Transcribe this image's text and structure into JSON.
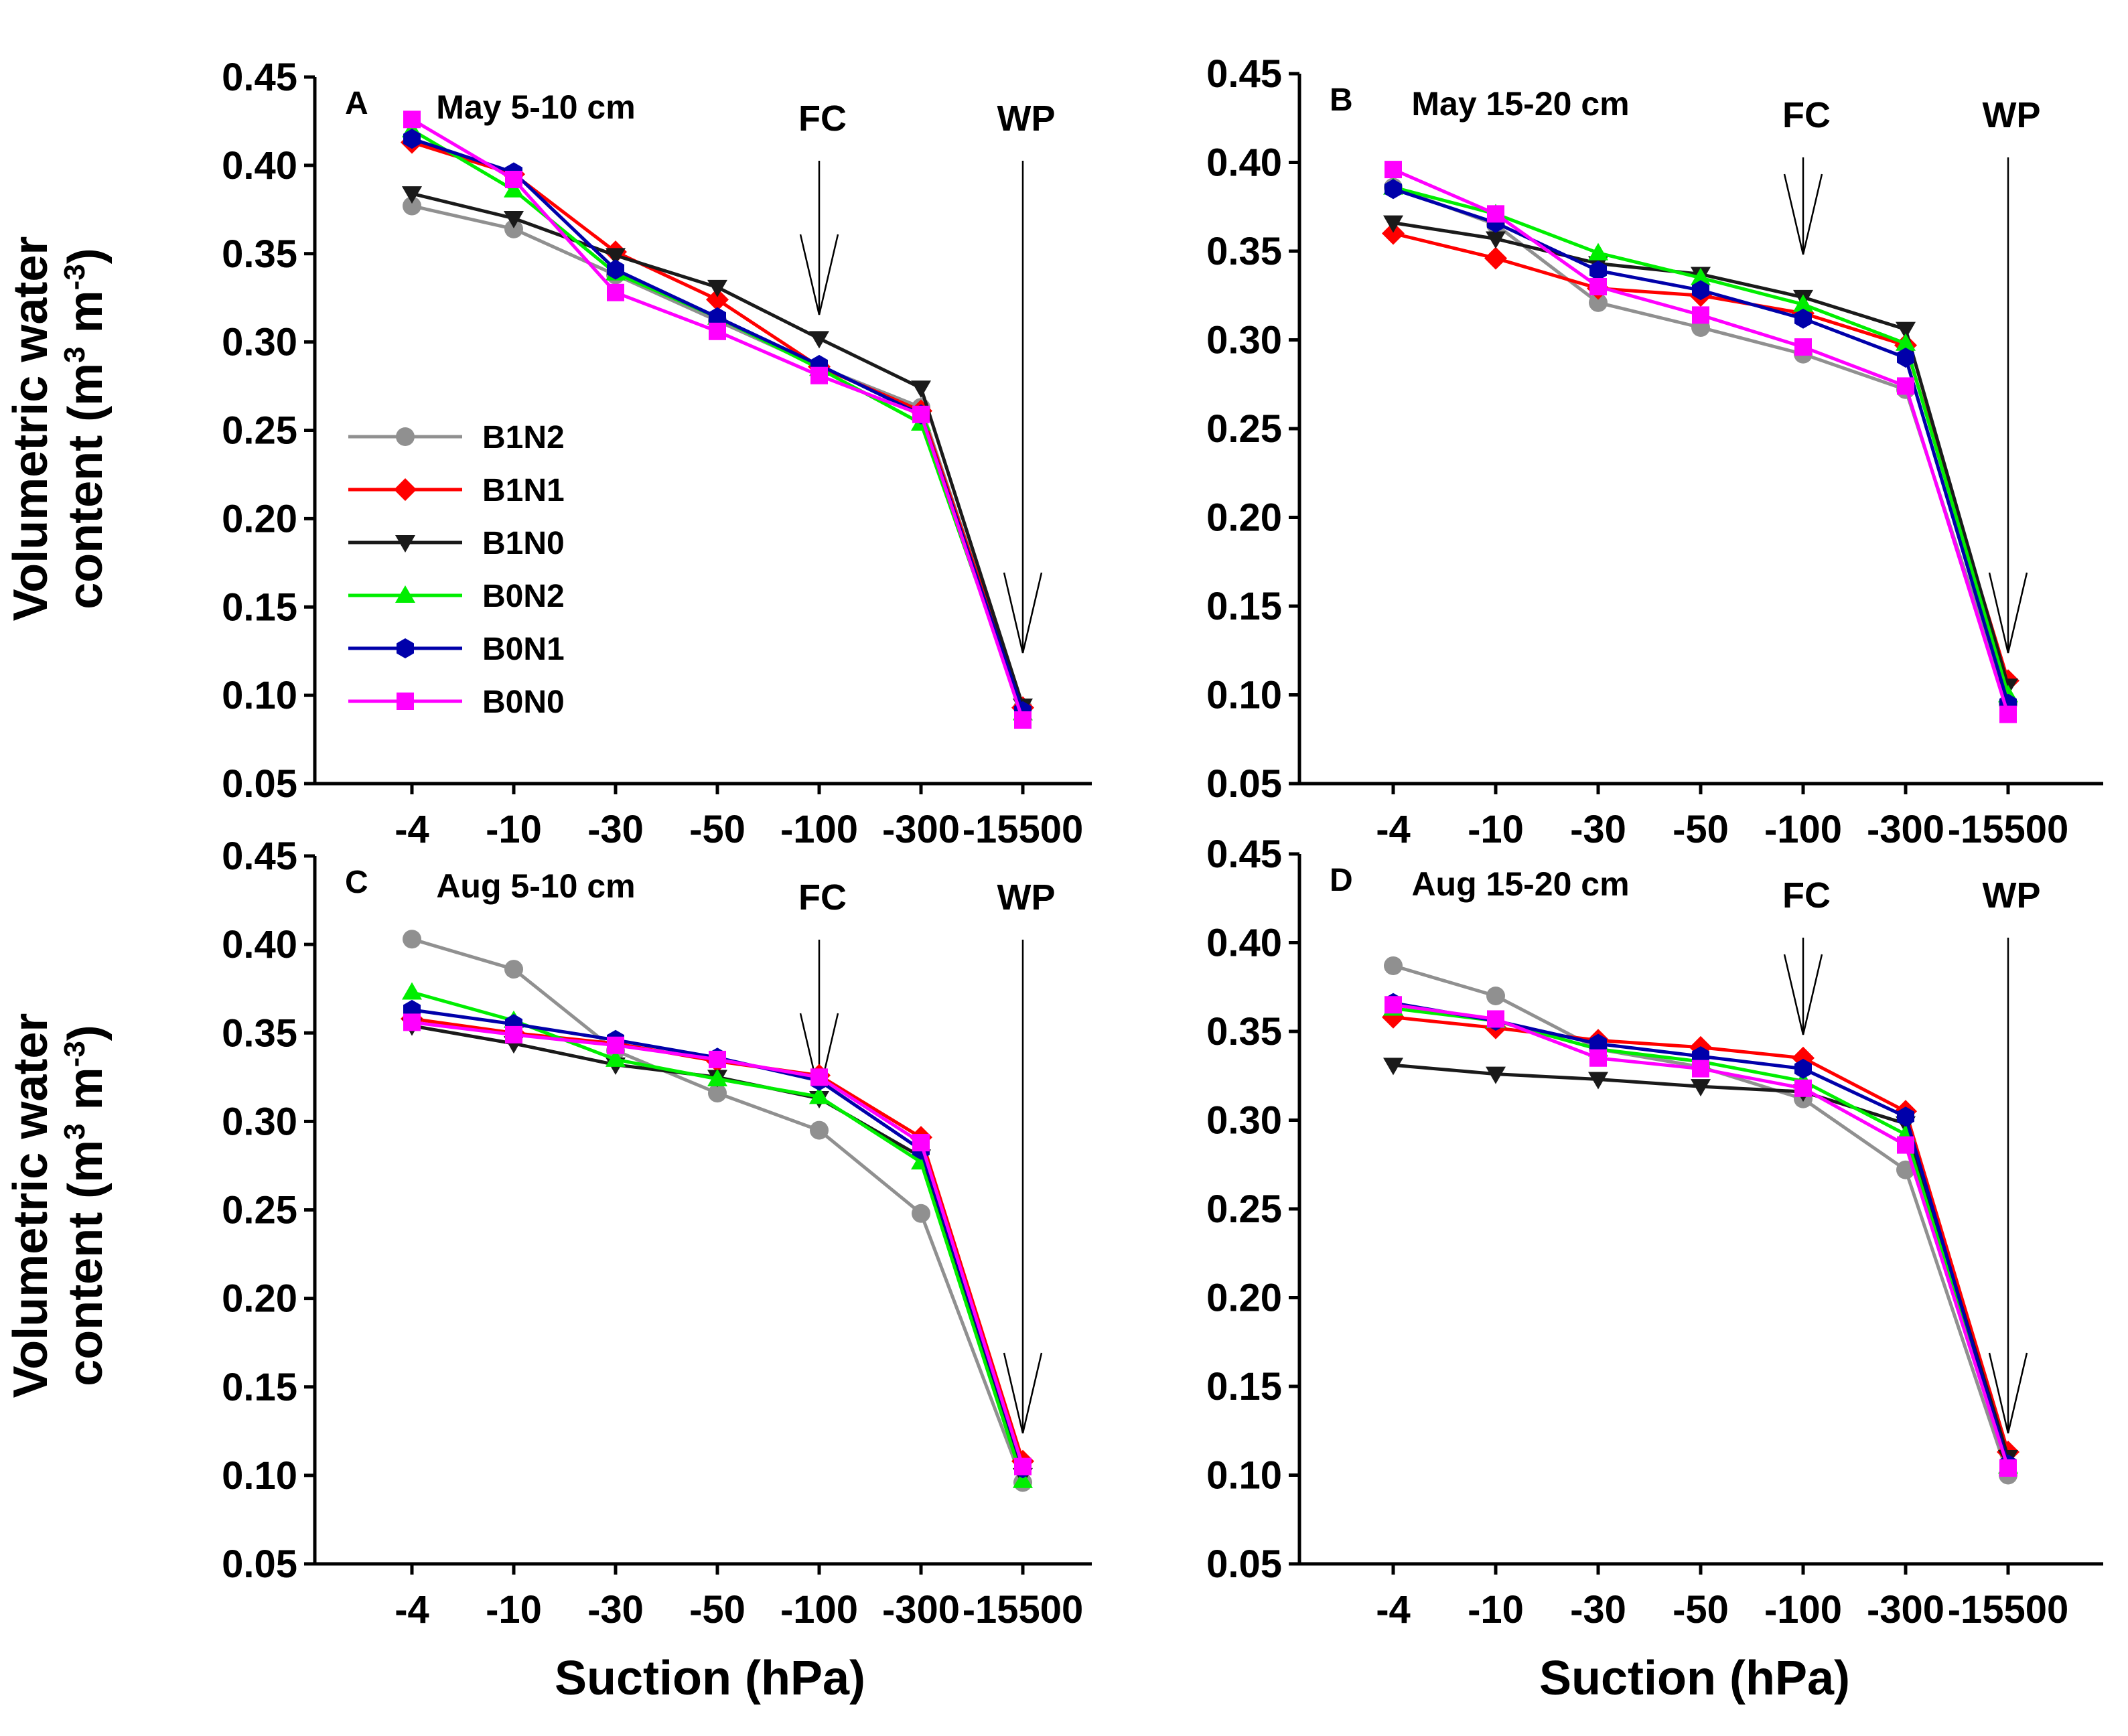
{
  "figure": {
    "ylabel_line1": "Volumetric water",
    "ylabel_line2": "content (m",
    "ylabel_sup1": "3",
    "ylabel_mid": " m",
    "ylabel_sup2": "-3",
    "ylabel_end": ")",
    "xlabel": "Suction (hPa)"
  },
  "legend": [
    {
      "name": "B1N2",
      "color": "#909090",
      "marker": "circle"
    },
    {
      "name": "B1N1",
      "color": "#ff0000",
      "marker": "diamond"
    },
    {
      "name": "B1N0",
      "color": "#1a1a1a",
      "marker": "triangle-down"
    },
    {
      "name": "B0N2",
      "color": "#00ee00",
      "marker": "triangle-up"
    },
    {
      "name": "B0N1",
      "color": "#0000aa",
      "marker": "hexagon"
    },
    {
      "name": "B0N0",
      "color": "#ff00ff",
      "marker": "square"
    }
  ],
  "chart_data": [
    {
      "type": "line",
      "panel": "A",
      "title": "May 5-10 cm",
      "categories": [
        "-4",
        "-10",
        "-30",
        "-50",
        "-100",
        "-300",
        "-15500"
      ],
      "ylim": [
        0.05,
        0.45
      ],
      "yticks": [
        "0.05",
        "0.10",
        "0.15",
        "0.20",
        "0.25",
        "0.30",
        "0.35",
        "0.40",
        "0.45"
      ],
      "annotations": [
        {
          "label": "FC",
          "category": "-100"
        },
        {
          "label": "WP",
          "category": "-15500"
        }
      ],
      "series": [
        {
          "name": "B1N2",
          "values": [
            0.377,
            0.364,
            0.338,
            0.312,
            0.286,
            0.263,
            0.093
          ]
        },
        {
          "name": "B1N1",
          "values": [
            0.413,
            0.395,
            0.351,
            0.324,
            0.286,
            0.261,
            0.093
          ]
        },
        {
          "name": "B1N0",
          "values": [
            0.384,
            0.37,
            0.349,
            0.331,
            0.302,
            0.274,
            0.094
          ]
        },
        {
          "name": "B0N2",
          "values": [
            0.42,
            0.386,
            0.339,
            0.314,
            0.285,
            0.254,
            0.09
          ]
        },
        {
          "name": "B0N1",
          "values": [
            0.415,
            0.396,
            0.341,
            0.314,
            0.287,
            0.259,
            0.091
          ]
        },
        {
          "name": "B0N0",
          "values": [
            0.426,
            0.392,
            0.328,
            0.306,
            0.281,
            0.259,
            0.086
          ]
        }
      ]
    },
    {
      "type": "line",
      "panel": "B",
      "title": "May 15-20 cm",
      "categories": [
        "-4",
        "-10",
        "-30",
        "-50",
        "-100",
        "-300",
        "-15500"
      ],
      "ylim": [
        0.05,
        0.45
      ],
      "yticks": [
        "0.05",
        "0.10",
        "0.15",
        "0.20",
        "0.25",
        "0.30",
        "0.35",
        "0.40",
        "0.45"
      ],
      "annotations": [
        {
          "label": "FC",
          "category": "-100"
        },
        {
          "label": "WP",
          "category": "-15500"
        }
      ],
      "series": [
        {
          "name": "B1N2",
          "values": [
            0.386,
            0.365,
            0.321,
            0.307,
            0.292,
            0.272,
            0.095
          ]
        },
        {
          "name": "B1N1",
          "values": [
            0.36,
            0.346,
            0.329,
            0.325,
            0.315,
            0.297,
            0.108
          ]
        },
        {
          "name": "B1N0",
          "values": [
            0.366,
            0.357,
            0.343,
            0.337,
            0.324,
            0.306,
            0.105
          ]
        },
        {
          "name": "B0N2",
          "values": [
            0.386,
            0.371,
            0.349,
            0.335,
            0.32,
            0.298,
            0.1
          ]
        },
        {
          "name": "B0N1",
          "values": [
            0.385,
            0.366,
            0.339,
            0.328,
            0.312,
            0.29,
            0.095
          ]
        },
        {
          "name": "B0N0",
          "values": [
            0.396,
            0.371,
            0.33,
            0.314,
            0.296,
            0.274,
            0.089
          ]
        }
      ]
    },
    {
      "type": "line",
      "panel": "C",
      "title": "Aug 5-10 cm",
      "categories": [
        "-4",
        "-10",
        "-30",
        "-50",
        "-100",
        "-300",
        "-15500"
      ],
      "ylim": [
        0.05,
        0.45
      ],
      "yticks": [
        "0.05",
        "0.10",
        "0.15",
        "0.20",
        "0.25",
        "0.30",
        "0.35",
        "0.40",
        "0.45"
      ],
      "annotations": [
        {
          "label": "FC",
          "category": "-100"
        },
        {
          "label": "WP",
          "category": "-15500"
        }
      ],
      "series": [
        {
          "name": "B1N2",
          "values": [
            0.403,
            0.386,
            0.34,
            0.316,
            0.295,
            0.248,
            0.096
          ]
        },
        {
          "name": "B1N1",
          "values": [
            0.358,
            0.35,
            0.344,
            0.334,
            0.326,
            0.291,
            0.108
          ]
        },
        {
          "name": "B1N0",
          "values": [
            0.354,
            0.344,
            0.332,
            0.325,
            0.313,
            0.28,
            0.1
          ]
        },
        {
          "name": "B0N2",
          "values": [
            0.373,
            0.357,
            0.335,
            0.324,
            0.314,
            0.277,
            0.097
          ]
        },
        {
          "name": "B0N1",
          "values": [
            0.363,
            0.355,
            0.346,
            0.336,
            0.323,
            0.284,
            0.104
          ]
        },
        {
          "name": "B0N0",
          "values": [
            0.356,
            0.349,
            0.343,
            0.335,
            0.325,
            0.288,
            0.105
          ]
        }
      ]
    },
    {
      "type": "line",
      "panel": "D",
      "title": "Aug 15-20 cm",
      "categories": [
        "-4",
        "-10",
        "-30",
        "-50",
        "-100",
        "-300",
        "-15500"
      ],
      "ylim": [
        0.05,
        0.45
      ],
      "yticks": [
        "0.05",
        "0.10",
        "0.15",
        "0.20",
        "0.25",
        "0.30",
        "0.35",
        "0.40",
        "0.45"
      ],
      "annotations": [
        {
          "label": "FC",
          "category": "-100"
        },
        {
          "label": "WP",
          "category": "-15500"
        }
      ],
      "series": [
        {
          "name": "B1N2",
          "values": [
            0.387,
            0.37,
            0.34,
            0.33,
            0.312,
            0.272,
            0.1
          ]
        },
        {
          "name": "B1N1",
          "values": [
            0.358,
            0.352,
            0.345,
            0.341,
            0.335,
            0.305,
            0.113
          ]
        },
        {
          "name": "B1N0",
          "values": [
            0.331,
            0.326,
            0.323,
            0.319,
            0.316,
            0.298,
            0.11
          ]
        },
        {
          "name": "B0N2",
          "values": [
            0.363,
            0.356,
            0.34,
            0.333,
            0.322,
            0.292,
            0.105
          ]
        },
        {
          "name": "B0N1",
          "values": [
            0.366,
            0.356,
            0.343,
            0.336,
            0.329,
            0.302,
            0.106
          ]
        },
        {
          "name": "B0N0",
          "values": [
            0.365,
            0.357,
            0.335,
            0.329,
            0.318,
            0.286,
            0.104
          ]
        }
      ]
    }
  ]
}
